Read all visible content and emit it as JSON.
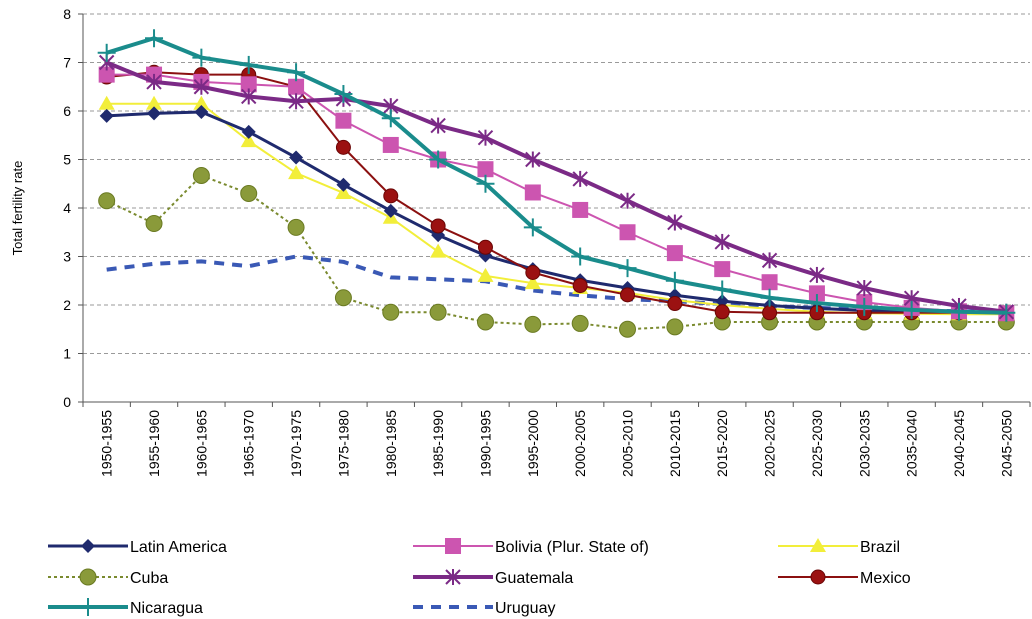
{
  "chart_data": {
    "type": "line",
    "title": "",
    "xlabel": "",
    "ylabel": "Total fertility rate",
    "ylim": [
      0,
      8
    ],
    "yticks": [
      0,
      1,
      2,
      3,
      4,
      5,
      6,
      7,
      8
    ],
    "grid": "horizontal dashed",
    "legend": "bottom",
    "categories": [
      "1950-1955",
      "1955-1960",
      "1960-1965",
      "1965-1970",
      "1970-1975",
      "1975-1980",
      "1980-1985",
      "1985-1990",
      "1990-1995",
      "1995-2000",
      "2000-2005",
      "2005-2010",
      "2010-2015",
      "2015-2020",
      "2020-2025",
      "2025-2030",
      "2030-2035",
      "2035-2040",
      "2040-2045",
      "2045-2050"
    ],
    "series": [
      {
        "name": "Latin America",
        "color": "#1f2a6e",
        "marker": "diamond",
        "dash": "solid",
        "width": 3,
        "values": [
          5.9,
          5.95,
          5.98,
          5.57,
          5.04,
          4.48,
          3.94,
          3.44,
          3.02,
          2.74,
          2.51,
          2.35,
          2.2,
          2.08,
          1.99,
          1.93,
          1.89,
          1.87,
          1.86,
          1.85
        ]
      },
      {
        "name": "Bolivia (Plur. State of)",
        "color": "#cc55b0",
        "marker": "square",
        "dash": "solid",
        "width": 2,
        "values": [
          6.75,
          6.75,
          6.6,
          6.55,
          6.5,
          5.8,
          5.3,
          5.0,
          4.8,
          4.32,
          3.96,
          3.5,
          3.07,
          2.74,
          2.47,
          2.24,
          2.06,
          1.94,
          1.87,
          1.83
        ]
      },
      {
        "name": "Brazil",
        "color": "#f2ee3a",
        "marker": "triangle",
        "dash": "solid",
        "width": 2,
        "values": [
          6.15,
          6.15,
          6.15,
          5.38,
          4.72,
          4.31,
          3.8,
          3.1,
          2.6,
          2.45,
          2.35,
          2.25,
          2.1,
          2.0,
          1.92,
          1.86,
          1.83,
          1.82,
          1.81,
          1.81
        ]
      },
      {
        "name": "Cuba",
        "color": "#7a8a2e",
        "marker": "circle-olive",
        "dash": "dotted",
        "width": 2,
        "values": [
          4.15,
          3.68,
          4.67,
          4.3,
          3.6,
          2.15,
          1.85,
          1.85,
          1.65,
          1.6,
          1.62,
          1.5,
          1.55,
          1.65,
          1.65,
          1.65,
          1.65,
          1.65,
          1.65,
          1.65
        ]
      },
      {
        "name": "Guatemala",
        "color": "#7b2a86",
        "marker": "star",
        "dash": "solid",
        "width": 4,
        "values": [
          7.0,
          6.6,
          6.5,
          6.3,
          6.2,
          6.25,
          6.1,
          5.7,
          5.45,
          5.0,
          4.6,
          4.15,
          3.7,
          3.3,
          2.92,
          2.62,
          2.35,
          2.14,
          1.98,
          1.86
        ]
      },
      {
        "name": "Mexico",
        "color": "#8b1010",
        "marker": "circle-red",
        "dash": "solid",
        "width": 2,
        "values": [
          6.7,
          6.8,
          6.75,
          6.75,
          6.5,
          5.25,
          4.25,
          3.63,
          3.19,
          2.67,
          2.4,
          2.21,
          2.03,
          1.86,
          1.84,
          1.84,
          1.84,
          1.84,
          1.84,
          1.84
        ]
      },
      {
        "name": "Nicaragua",
        "color": "#1a8c8c",
        "marker": "plus",
        "dash": "solid",
        "width": 4,
        "values": [
          7.2,
          7.5,
          7.1,
          6.95,
          6.8,
          6.35,
          5.85,
          5.0,
          4.5,
          3.6,
          3.0,
          2.76,
          2.5,
          2.32,
          2.15,
          2.04,
          1.96,
          1.9,
          1.86,
          1.84
        ]
      },
      {
        "name": "Uruguay",
        "color": "#3a59b5",
        "marker": "none",
        "dash": "dashed",
        "width": 4,
        "values": [
          2.73,
          2.85,
          2.9,
          2.8,
          3.0,
          2.89,
          2.57,
          2.53,
          2.49,
          2.3,
          2.2,
          2.12,
          2.08,
          2.02,
          1.98,
          1.94,
          1.91,
          1.89,
          1.87,
          1.86
        ]
      }
    ]
  }
}
